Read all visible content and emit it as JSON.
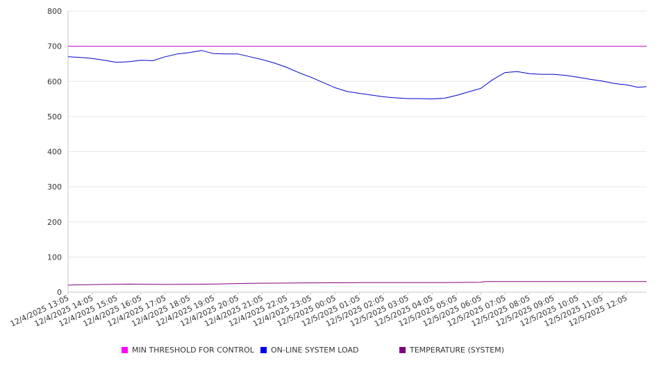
{
  "chart_data": {
    "type": "line",
    "title": "",
    "xlabel": "",
    "ylabel": "",
    "ylim": [
      0,
      800
    ],
    "yticks": [
      0,
      100,
      200,
      300,
      400,
      500,
      600,
      700,
      800
    ],
    "xlim": [
      "12/4/2025 13:05",
      "12/5/2025 12:55"
    ],
    "x_tick_labels": [
      "12/4/2025 13:05",
      "12/4/2025 14:05",
      "12/4/2025 15:05",
      "12/4/2025 16:05",
      "12/4/2025 17:05",
      "12/4/2025 18:05",
      "12/4/2025 19:05",
      "12/4/2025 20:05",
      "12/4/2025 21:05",
      "12/4/2025 22:05",
      "12/4/2025 23:05",
      "12/5/2025 00:05",
      "12/5/2025 01:05",
      "12/5/2025 02:05",
      "12/5/2025 03:05",
      "12/5/2025 04:05",
      "12/5/2025 05:05",
      "12/5/2025 06:05",
      "12/5/2025 07:05",
      "12/5/2025 08:05",
      "12/5/2025 09:05",
      "12/5/2025 10:05",
      "12/5/2025 11:05",
      "12/5/2025 12:05"
    ],
    "grid": true,
    "legend_position": "bottom",
    "series": [
      {
        "name": "MIN THRESHOLD FOR CONTROL",
        "color": "#cc00cc",
        "x": [
          "12/4/2025 13:05",
          "12/5/2025 12:55"
        ],
        "y": [
          700,
          700
        ]
      },
      {
        "name": "ON-LINE SYSTEM LOAD",
        "color": "#0000cc",
        "x": [
          "12/4/2025 13:05",
          "12/4/2025 13:35",
          "12/4/2025 14:05",
          "12/4/2025 14:35",
          "12/4/2025 15:05",
          "12/4/2025 15:35",
          "12/4/2025 16:05",
          "12/4/2025 16:35",
          "12/4/2025 17:05",
          "12/4/2025 17:35",
          "12/4/2025 18:05",
          "12/4/2025 18:35",
          "12/4/2025 19:05",
          "12/4/2025 19:35",
          "12/4/2025 20:05",
          "12/4/2025 20:35",
          "12/4/2025 21:05",
          "12/4/2025 21:35",
          "12/4/2025 22:05",
          "12/4/2025 22:35",
          "12/4/2025 23:05",
          "12/4/2025 23:35",
          "12/5/2025 00:05",
          "12/5/2025 00:35",
          "12/5/2025 01:05",
          "12/5/2025 01:35",
          "12/5/2025 02:05",
          "12/5/2025 02:35",
          "12/5/2025 03:05",
          "12/5/2025 03:35",
          "12/5/2025 04:05",
          "12/5/2025 04:35",
          "12/5/2025 05:05",
          "12/5/2025 05:35",
          "12/5/2025 06:05",
          "12/5/2025 06:35",
          "12/5/2025 07:05",
          "12/5/2025 07:35",
          "12/5/2025 08:05",
          "12/5/2025 08:35",
          "12/5/2025 09:05",
          "12/5/2025 09:35",
          "12/5/2025 10:05",
          "12/5/2025 10:35",
          "12/5/2025 11:05",
          "12/5/2025 11:35",
          "12/5/2025 12:05",
          "12/5/2025 12:35",
          "12/5/2025 12:55"
        ],
        "y": [
          670,
          668,
          665,
          660,
          654,
          656,
          660,
          659,
          670,
          678,
          682,
          688,
          679,
          678,
          678,
          670,
          662,
          652,
          640,
          625,
          612,
          597,
          582,
          571,
          566,
          561,
          556,
          553,
          551,
          551,
          550,
          552,
          560,
          570,
          580,
          605,
          625,
          628,
          622,
          620,
          620,
          617,
          612,
          606,
          601,
          594,
          590,
          583,
          585
        ]
      },
      {
        "name": "TEMPERATURE (SYSTEM)",
        "color": "#800080",
        "x": [
          "12/4/2025 13:05",
          "12/4/2025 13:35",
          "12/4/2025 14:35",
          "12/4/2025 15:35",
          "12/4/2025 17:05",
          "12/4/2025 19:05",
          "12/4/2025 20:35",
          "12/4/2025 22:35",
          "12/5/2025 01:05",
          "12/5/2025 04:05",
          "12/5/2025 06:05",
          "12/5/2025 06:15",
          "12/5/2025 06:35",
          "12/5/2025 09:05",
          "12/5/2025 12:55"
        ],
        "y": [
          20,
          21,
          22,
          23,
          22,
          23,
          25,
          26,
          27,
          27,
          28,
          30,
          30,
          30,
          30
        ]
      }
    ]
  }
}
